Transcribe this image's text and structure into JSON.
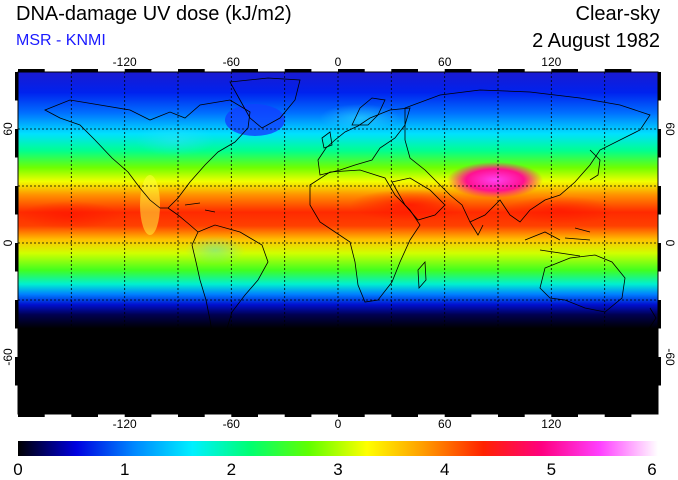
{
  "header": {
    "title": "DNA-damage UV dose (kJ/m2)",
    "subtitle": "MSR - KNMI",
    "subtitle_color": "#1a1aff",
    "condition": "Clear-sky",
    "date": "2 August 1982"
  },
  "map": {
    "projection": "equirectangular",
    "lon_range": [
      -180,
      180
    ],
    "lat_range": [
      -90,
      90
    ],
    "grid_interval_deg": 30,
    "grid_style": "dotted",
    "lon_tick_labels": [
      "-120",
      "-60",
      "0",
      "60",
      "120"
    ],
    "lat_tick_labels": [
      "60",
      "0",
      "-60"
    ]
  },
  "colorbar": {
    "min": 0,
    "max": 6,
    "tick_labels": [
      "0",
      "1",
      "2",
      "3",
      "4",
      "5",
      "6"
    ],
    "colors": [
      "#000000",
      "#0000e0",
      "#0088ff",
      "#00f0ff",
      "#00ff70",
      "#60ff00",
      "#ffff00",
      "#ff9900",
      "#ff2200",
      "#ff0080",
      "#ff40ff",
      "#ffffff"
    ]
  }
}
